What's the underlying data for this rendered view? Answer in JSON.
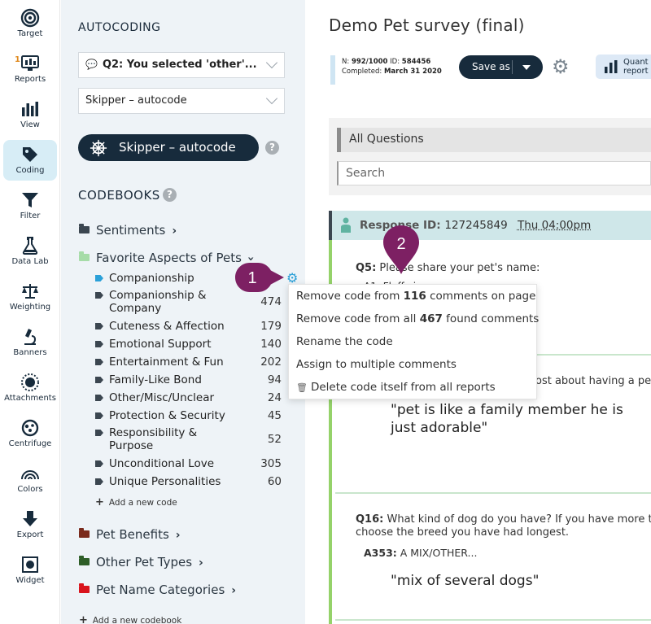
{
  "nav": {
    "items": [
      {
        "label": "Target",
        "icon": "target-icon"
      },
      {
        "label": "Reports",
        "icon": "reports-icon",
        "badge": "1"
      },
      {
        "label": "View",
        "icon": "view-chart-icon"
      },
      {
        "label": "Coding",
        "icon": "coding-tag-icon",
        "active": true
      },
      {
        "label": "Filter",
        "icon": "filter-icon"
      },
      {
        "label": "Data Lab",
        "icon": "flask-icon"
      },
      {
        "label": "Weighting",
        "icon": "scale-icon"
      },
      {
        "label": "Banners",
        "icon": "microscope-icon"
      },
      {
        "label": "Attachments",
        "icon": "sun-icon"
      },
      {
        "label": "Centrifuge",
        "icon": "centrifuge-icon"
      },
      {
        "label": "Colors",
        "icon": "rainbow-icon"
      },
      {
        "label": "Export",
        "icon": "export-arrow-icon"
      },
      {
        "label": "Widget",
        "icon": "widget-icon"
      }
    ]
  },
  "panel": {
    "title": "AUTOCODING",
    "question_select_prefix": "Q2: You selected ",
    "question_select_bold": "'other'...",
    "autocode_select": "Skipper – autocode",
    "skipper_button": "Skipper – autocode",
    "codebooks_title": "CODEBOOKS",
    "help": "?",
    "folders": {
      "sentiments": "Sentiments",
      "favorite": "Favorite Aspects of Pets",
      "benefits": "Pet Benefits",
      "other_types": "Other Pet Types",
      "name_categories": "Pet Name Categories"
    },
    "codes": [
      {
        "name": "Companionship",
        "count": ""
      },
      {
        "name": "Companionship & Company",
        "count": "474"
      },
      {
        "name": "Cuteness & Affection",
        "count": "179"
      },
      {
        "name": "Emotional Support",
        "count": "140"
      },
      {
        "name": "Entertainment & Fun",
        "count": "202"
      },
      {
        "name": "Family-Like Bond",
        "count": "94"
      },
      {
        "name": "Other/Misc/Unclear",
        "count": "24"
      },
      {
        "name": "Protection & Security",
        "count": "45"
      },
      {
        "name": "Responsibility & Purpose",
        "count": "52"
      },
      {
        "name": "Unconditional Love",
        "count": "305"
      },
      {
        "name": "Unique Personalities",
        "count": "60"
      }
    ],
    "add_code": "Add a new code",
    "add_codebook": "Add a new codebook"
  },
  "menu": {
    "remove_page_prefix": "Remove code from ",
    "remove_page_num": "116",
    "remove_page_suffix": " comments on page",
    "remove_all_prefix": "Remove code from all ",
    "remove_all_num": "467",
    "remove_all_suffix": " found comments",
    "rename": "Rename the code",
    "assign": "Assign to multiple comments",
    "delete": "Delete code itself from all reports"
  },
  "markers": {
    "one": "1",
    "two": "2"
  },
  "main": {
    "survey_title": "Demo Pet survey (final)",
    "n_label": "N: ",
    "n_value": "992/1000",
    "id_label": " ID: ",
    "id_value": "584456",
    "completed_label": "Completed: ",
    "completed_value": "March 31 2020",
    "save_as": "Save as",
    "quant_line1": "Quant",
    "quant_line2": "report",
    "all_questions": "All Questions",
    "search_placeholder": "Search",
    "response_label": "Response ID: ",
    "response_id": "127245849",
    "response_time": "Thu 04:00pm",
    "q5_label": "Q5:",
    "q5_text": " Please share your pet's name:",
    "q5_answer": "A1: Fluffy jr.",
    "q_mid_text": "ost about having a pet.",
    "comment1": "\"pet is like a family member he is just adorable\"",
    "q16_label": "Q16:",
    "q16_text": " What kind of dog do you have? If you have more than",
    "q16_text2": "choose the breed you have had longest.",
    "a353_label": "A353:",
    "a353_text": " A MIX/OTHER...",
    "comment2": "\"mix of several dogs\""
  },
  "colors": {
    "navy": "#172b3c",
    "accent_blue": "#2aa0d8",
    "marker_purple": "#7d2063",
    "response_green": "#95d26a"
  }
}
